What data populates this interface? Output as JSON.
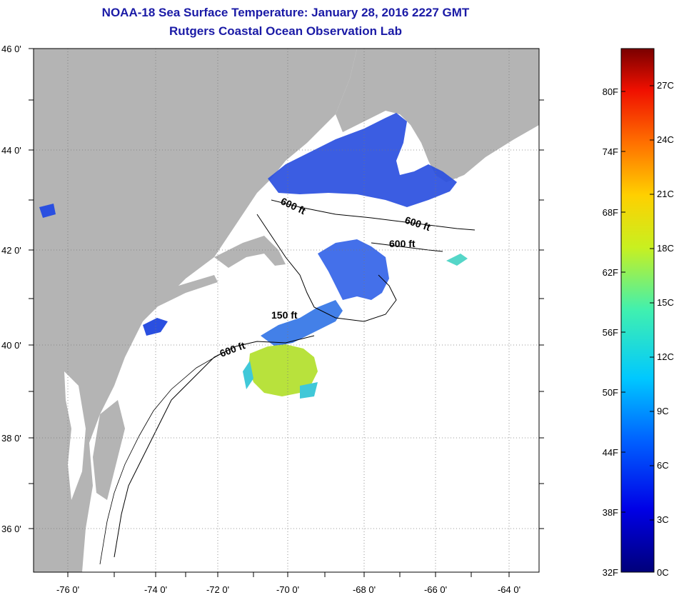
{
  "title": {
    "line1": "NOAA-18 Sea Surface Temperature:  January 28, 2016 2227 GMT",
    "line2": "Rutgers Coastal Ocean Observation Lab"
  },
  "map": {
    "lat_labels": [
      "46 0'",
      "44 0'",
      "42 0'",
      "40 0'",
      "38 0'",
      "36 0'"
    ],
    "lon_labels": [
      "-76 0'",
      "-74 0'",
      "-72 0'",
      "-70 0'",
      "-68 0'",
      "-66 0'",
      "-64 0'"
    ],
    "contour_labels": [
      "600 ft",
      "600 ft",
      "600 ft",
      "150 ft",
      "600 ft"
    ],
    "colors": {
      "land": "#b4b4b4",
      "ocean": "#ffffff",
      "cold_water": "#2a4fe0",
      "warm_water": "#b8e23c"
    }
  },
  "colorbar": {
    "fahrenheit_labels": [
      "80F",
      "74F",
      "68F",
      "62F",
      "56F",
      "50F",
      "44F",
      "38F",
      "32F"
    ],
    "celsius_labels": [
      "27C",
      "24C",
      "21C",
      "18C",
      "15C",
      "12C",
      "9C",
      "6C",
      "3C",
      "0C"
    ]
  }
}
